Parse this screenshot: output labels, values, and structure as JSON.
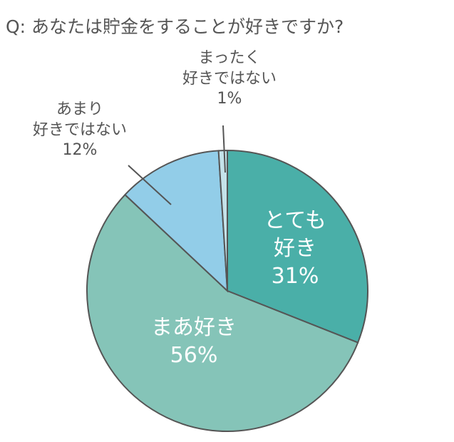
{
  "chart_data": {
    "type": "pie",
    "title": "Q: あなたは貯金をすることが好きですか?",
    "categories": [
      "とても\n好き",
      "まあ好き",
      "あまり\n好きではない",
      "まったく\n好きではない"
    ],
    "values": [
      31,
      56,
      12,
      1
    ],
    "value_labels": [
      "31%",
      "56%",
      "12%",
      "1%"
    ],
    "colors": [
      "#4aafa8",
      "#85c4b8",
      "#92cde8",
      "#c5e3ea"
    ]
  }
}
